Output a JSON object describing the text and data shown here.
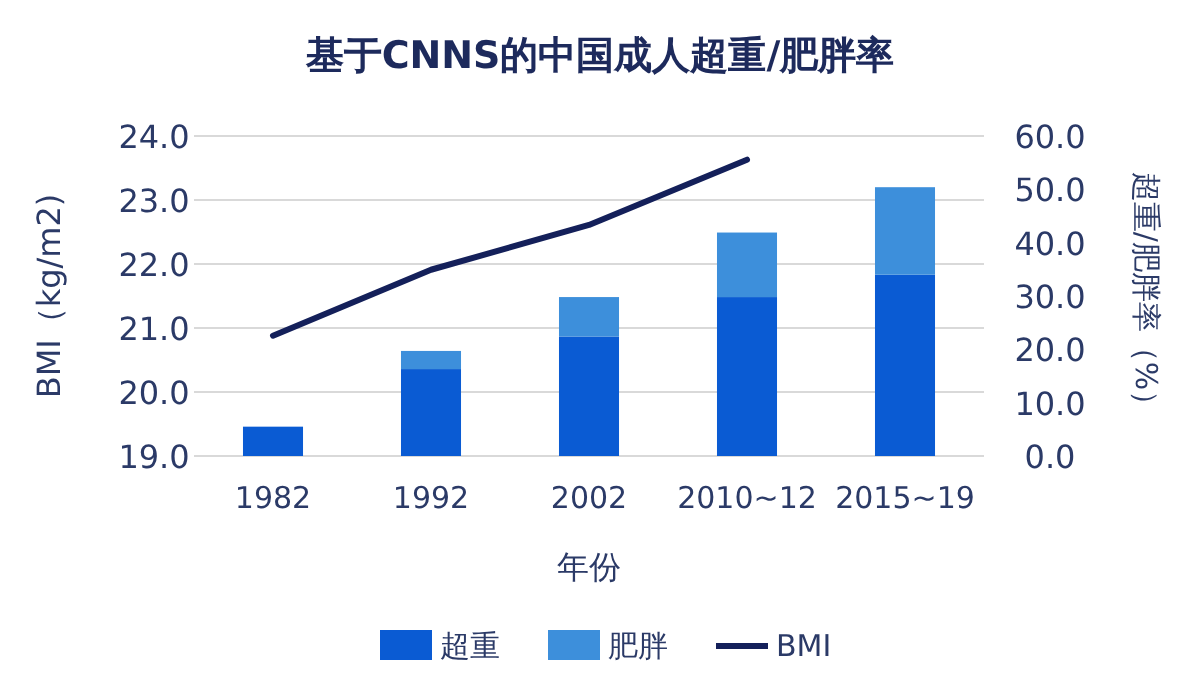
{
  "chart_data": {
    "type": "bar",
    "title": "基于CNNS的中国成人超重/肥胖率",
    "xlabel": "年份",
    "ylabel": "BMI（kg/m2)",
    "y2label": "超重/肥胖率（%）",
    "categories": [
      "1982",
      "1992",
      "2002",
      "2010~12",
      "2015~19"
    ],
    "stacked": true,
    "grid": "y",
    "legend": "bottom",
    "series": [
      {
        "name": "超重",
        "axis": "y2",
        "color": "#0a5bd3",
        "values": [
          5.5,
          16.3,
          22.4,
          29.8,
          34.0
        ]
      },
      {
        "name": "肥胖",
        "axis": "y2",
        "color": "#3d8fdb",
        "values": [
          0,
          3.4,
          7.4,
          12.1,
          16.4
        ]
      },
      {
        "name": "BMI",
        "type": "line",
        "axis": "y",
        "color": "#14205a",
        "values": [
          20.88,
          21.91,
          22.61,
          23.63,
          null
        ]
      }
    ],
    "ylim": [
      19,
      24
    ],
    "yticks": [
      {
        "value": 19,
        "label": "19.0"
      },
      {
        "value": 20,
        "label": "20.0"
      },
      {
        "value": 21,
        "label": "21.0"
      },
      {
        "value": 22,
        "label": "22.0"
      },
      {
        "value": 23,
        "label": "23.0"
      },
      {
        "value": 24,
        "label": "24.0"
      }
    ],
    "y2lim": [
      0,
      60
    ],
    "y2ticks": [
      {
        "value": 0,
        "label": "0.0"
      },
      {
        "value": 10,
        "label": "10.0"
      },
      {
        "value": 20,
        "label": "20.0"
      },
      {
        "value": 30,
        "label": "30.0"
      },
      {
        "value": 40,
        "label": "40.0"
      },
      {
        "value": 50,
        "label": "50.0"
      },
      {
        "value": 60,
        "label": "60.0"
      }
    ]
  }
}
